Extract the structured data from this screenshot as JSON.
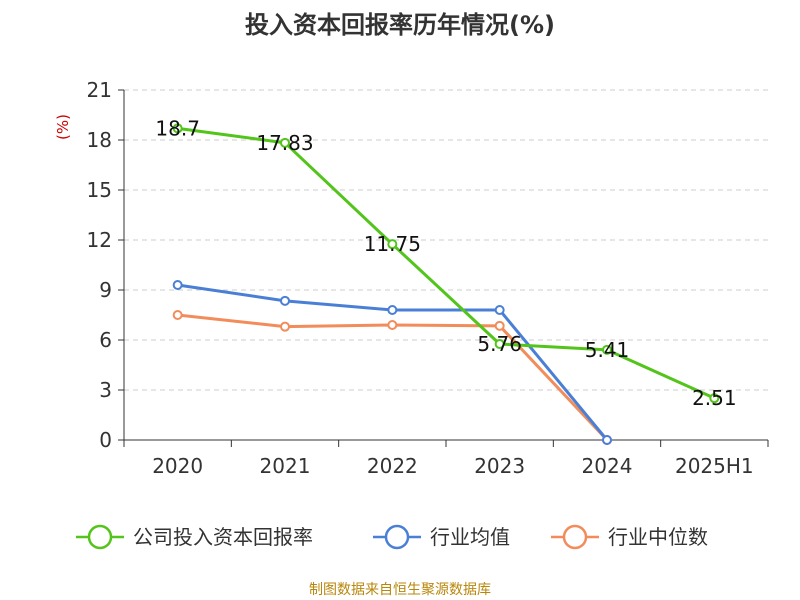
{
  "chart_data": {
    "type": "line",
    "title": "投入资本回报率历年情况(%)",
    "ylabel": "(%)",
    "categories": [
      "2020",
      "2021",
      "2022",
      "2023",
      "2024",
      "2025H1"
    ],
    "ylim": [
      0,
      21
    ],
    "yticks": [
      0,
      3,
      6,
      9,
      12,
      15,
      18,
      21
    ],
    "grid": true,
    "legend": "bottom",
    "series": [
      {
        "name": "公司投入资本回报率",
        "color": "#52c41a",
        "values": [
          18.7,
          17.83,
          11.75,
          5.76,
          5.41,
          2.51
        ],
        "labels": [
          "18.7",
          "17.83",
          "11.75",
          "5.76",
          "5.41",
          "2.51"
        ]
      },
      {
        "name": "行业均值",
        "color": "#4a7fd6",
        "values": [
          9.3,
          8.35,
          7.8,
          7.8,
          0.0,
          null
        ]
      },
      {
        "name": "行业中位数",
        "color": "#f28c5a",
        "values": [
          7.5,
          6.8,
          6.9,
          6.85,
          0.0,
          null
        ]
      }
    ]
  },
  "source": "制图数据来自恒生聚源数据库"
}
